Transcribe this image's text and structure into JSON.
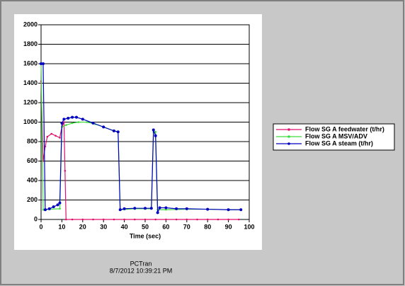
{
  "chart_data": {
    "type": "line",
    "xlabel": "Time (sec)",
    "xlim": [
      0,
      100
    ],
    "xticks": [
      0,
      10,
      20,
      30,
      40,
      50,
      60,
      70,
      80,
      90,
      100
    ],
    "ylim": [
      0,
      2000
    ],
    "yticks": [
      0,
      200,
      400,
      600,
      800,
      1000,
      1200,
      1400,
      1600,
      1800,
      2000
    ],
    "grid": true,
    "legend": "right",
    "series": [
      {
        "name": "Flow SG A feedwater (t/hr)",
        "color": "#e0106e",
        "x": [
          0,
          1,
          2,
          3,
          5,
          7,
          9,
          10,
          11,
          11.5,
          12,
          15,
          20,
          25,
          30,
          35,
          40,
          45,
          50,
          55,
          60,
          65,
          70,
          75,
          80,
          85,
          90,
          95
        ],
        "values": [
          1420,
          600,
          750,
          850,
          880,
          860,
          840,
          950,
          1000,
          500,
          0,
          0,
          0,
          0,
          0,
          0,
          0,
          0,
          0,
          0,
          0,
          0,
          0,
          0,
          0,
          0,
          0,
          0
        ]
      },
      {
        "name": "Flow SG A MSV/ADV",
        "color": "#3cdc3c",
        "x": [
          0,
          1,
          4,
          9,
          10,
          12,
          15,
          18,
          22,
          26,
          30,
          35,
          37,
          38,
          45,
          53,
          54,
          55,
          56,
          60,
          70,
          80,
          90,
          96
        ],
        "values": [
          1600,
          100,
          105,
          110,
          950,
          970,
          990,
          1000,
          1000,
          980,
          950,
          910,
          900,
          100,
          110,
          110,
          900,
          900,
          100,
          100,
          105,
          105,
          100,
          100
        ]
      },
      {
        "name": "Flow SG A steam (t/hr)",
        "color": "#0000c0",
        "x": [
          0,
          1,
          2,
          4,
          6,
          8,
          9,
          10,
          11,
          13,
          15,
          17,
          20,
          25,
          30,
          35,
          37,
          38,
          40,
          45,
          50,
          53,
          54,
          55,
          56,
          57,
          60,
          65,
          70,
          80,
          90,
          96
        ],
        "values": [
          1600,
          1600,
          100,
          110,
          130,
          150,
          170,
          990,
          1030,
          1040,
          1050,
          1050,
          1030,
          990,
          950,
          910,
          900,
          100,
          110,
          115,
          115,
          115,
          920,
          860,
          70,
          120,
          120,
          110,
          110,
          105,
          100,
          100
        ]
      }
    ]
  },
  "footer": {
    "app": "PCTran",
    "timestamp": "8/7/2012 10:39:21 PM"
  }
}
